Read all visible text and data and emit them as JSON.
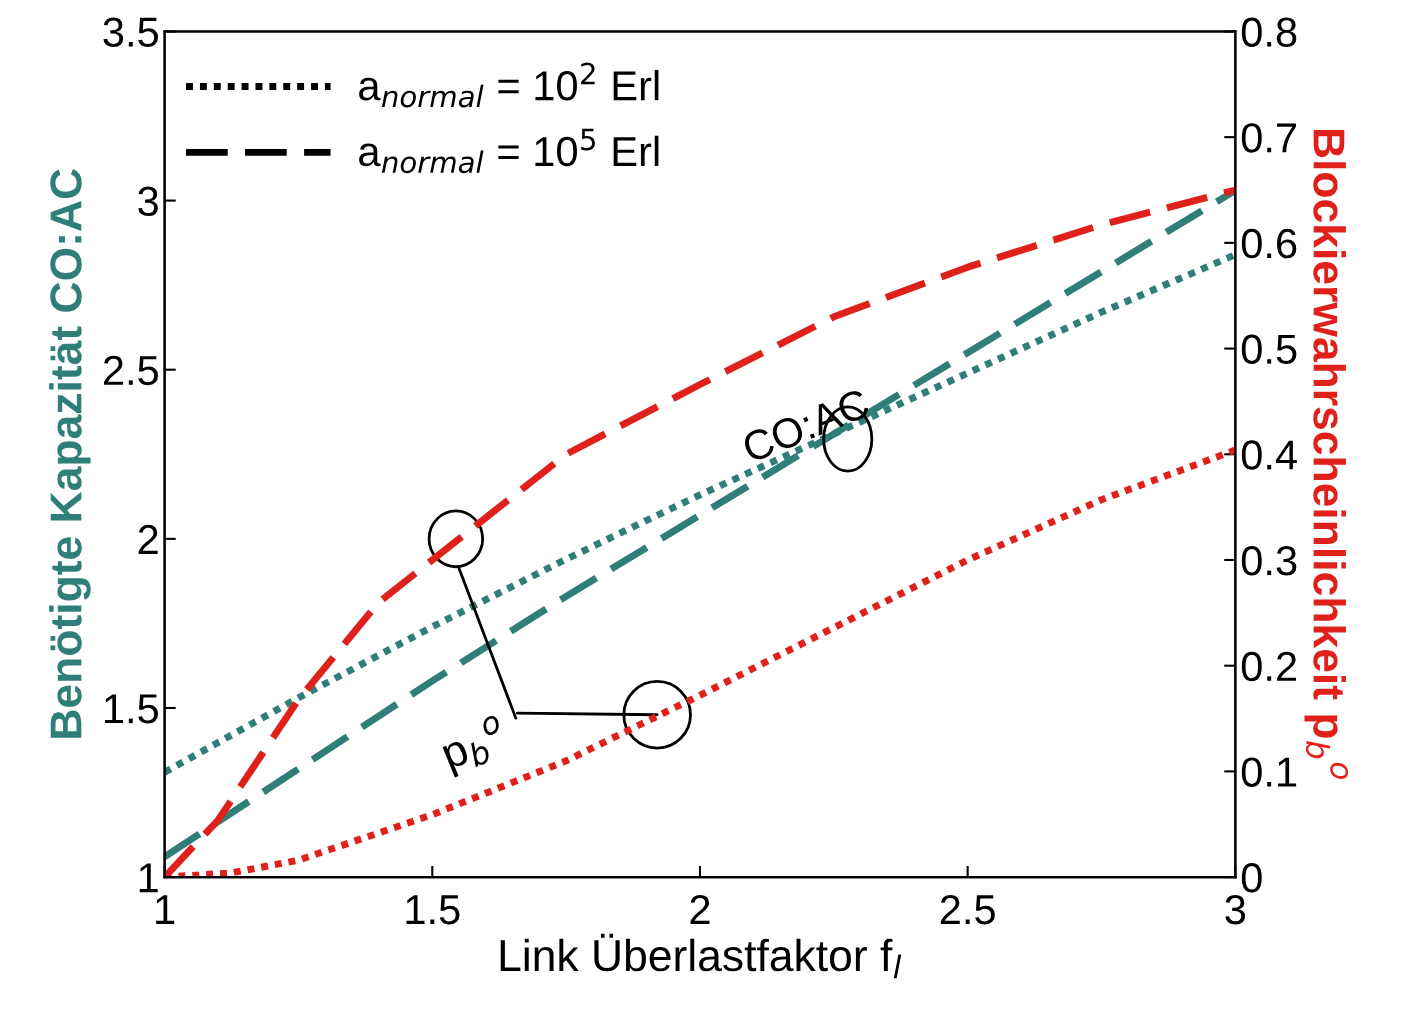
{
  "chart_data": {
    "type": "line",
    "xlabel": "Link Überlastfaktor f$_{l}$",
    "ylabel": "Benötigte Kapazität CO:AC",
    "y2label": "Blockierwahrscheinlichkeit p$_{b}$$^{o}$",
    "x": [
      1,
      1.25,
      1.5,
      1.75,
      2,
      2.25,
      2.5,
      2.75,
      3
    ],
    "series": [
      {
        "color": "#2f7f78",
        "line_style": "dotted",
        "values": [
          1.31,
          1.53,
          1.74,
          1.94,
          2.13,
          2.31,
          2.49,
          2.67,
          2.84
        ]
      },
      {
        "color": "#2f7f78",
        "line_style": "dashed",
        "values": [
          1.06,
          1.32,
          1.58,
          1.83,
          2.07,
          2.31,
          2.55,
          2.79,
          3.03
        ]
      },
      {
        "color": "#e0201b",
        "line_style": "dotted",
        "axis": "y2",
        "x": [
          1,
          1.125,
          1.25,
          1.5,
          1.75,
          2,
          2.25,
          2.5,
          2.75,
          3
        ],
        "values": [
          0,
          0.004,
          0.016,
          0.059,
          0.11,
          0.172,
          0.236,
          0.3,
          0.357,
          0.404
        ]
      },
      {
        "color": "#e0201b",
        "line_style": "dashed",
        "axis": "y2",
        "x": [
          1,
          1.1,
          1.25,
          1.4,
          1.5,
          1.75,
          2,
          2.25,
          2.5,
          2.75,
          3
        ],
        "values": [
          0,
          0.054,
          0.168,
          0.26,
          0.3,
          0.4,
          0.466,
          0.53,
          0.577,
          0.617,
          0.65
        ]
      }
    ],
    "annotations": [
      "a$_{normal}$ = 10$^{2}$ Erl",
      "a$_{normal}$ = 10$^{5}$ Erl",
      "CO:AC",
      {
        "text": "p$_{b}$$^{o}$",
        "x": 1.92,
        "y": 1.48
      }
    ],
    "xlim": [
      1,
      3
    ],
    "xticks": [
      1,
      1.5,
      2,
      2.5,
      3
    ],
    "ylim": [
      1,
      3.5
    ],
    "yticks": [
      1,
      1.5,
      2,
      2.5,
      3,
      3.5
    ],
    "y2lim": [
      0,
      0.8
    ],
    "y2ticks": [
      0,
      0.1,
      0.2,
      0.3,
      0.4,
      0.5,
      0.6,
      0.7,
      0.8
    ],
    "grid": false
  }
}
